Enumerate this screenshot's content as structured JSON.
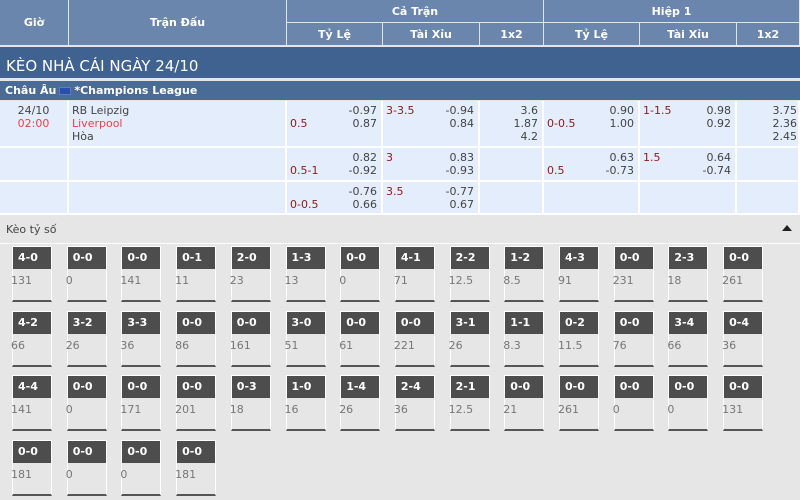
{
  "header": {
    "time": "Giờ",
    "match": "Trận Đấu",
    "full": "Cả Trận",
    "half": "Hiệp 1",
    "handicap": "Tỷ Lệ",
    "overunder": "Tài Xỉu",
    "x12": "1x2"
  },
  "title": "KÈO NHÀ CÁI NGÀY 24/10",
  "league": {
    "region": "Châu Âu",
    "name": "*Champions League",
    "flag_icon": "eu-flag-icon"
  },
  "match": {
    "date": "24/10",
    "time": "02:00",
    "home": "RB Leipzig",
    "away": "Liverpool",
    "draw": "Hòa"
  },
  "rows": [
    {
      "hc_line": "0.5",
      "hc_odds": [
        "-0.97",
        "0.87"
      ],
      "ou_line": "3-3.5",
      "ou_odds": [
        "-0.94",
        "0.84"
      ],
      "x12": [
        "3.6",
        "1.87",
        "4.2"
      ],
      "h_hc_line": "0-0.5",
      "h_hc_odds": [
        "0.90",
        "1.00"
      ],
      "h_ou_line": "1-1.5",
      "h_ou_odds": [
        "0.98",
        "0.92"
      ],
      "h_x12": [
        "3.75",
        "2.36",
        "2.45"
      ]
    },
    {
      "hc_line": "0.5-1",
      "hc_odds": [
        "0.82",
        "-0.92"
      ],
      "ou_line": "3",
      "ou_odds": [
        "0.83",
        "-0.93"
      ],
      "x12": [],
      "h_hc_line": "0.5",
      "h_hc_odds": [
        "0.63",
        "-0.73"
      ],
      "h_ou_line": "1.5",
      "h_ou_odds": [
        "0.64",
        "-0.74"
      ],
      "h_x12": []
    },
    {
      "hc_line": "0-0.5",
      "hc_odds": [
        "-0.76",
        "0.66"
      ],
      "ou_line": "3.5",
      "ou_odds": [
        "-0.77",
        "0.67"
      ],
      "x12": [],
      "h_hc_line": "",
      "h_hc_odds": [],
      "h_ou_line": "",
      "h_ou_odds": [],
      "h_x12": []
    }
  ],
  "correct_score": {
    "label": "Kèo tỷ số",
    "cards": [
      [
        "4-0",
        "131"
      ],
      [
        "0-0",
        "0"
      ],
      [
        "0-0",
        "141"
      ],
      [
        "0-1",
        "11"
      ],
      [
        "2-0",
        "23"
      ],
      [
        "1-3",
        "13"
      ],
      [
        "0-0",
        "0"
      ],
      [
        "4-1",
        "71"
      ],
      [
        "2-2",
        "12.5"
      ],
      [
        "1-2",
        "8.5"
      ],
      [
        "4-3",
        "91"
      ],
      [
        "0-0",
        "231"
      ],
      [
        "2-3",
        "18"
      ],
      [
        "0-0",
        "261"
      ],
      [
        "4-2",
        "66"
      ],
      [
        "3-2",
        "26"
      ],
      [
        "3-3",
        "36"
      ],
      [
        "0-0",
        "86"
      ],
      [
        "0-0",
        "161"
      ],
      [
        "3-0",
        "51"
      ],
      [
        "0-0",
        "61"
      ],
      [
        "0-0",
        "221"
      ],
      [
        "3-1",
        "26"
      ],
      [
        "1-1",
        "8.3"
      ],
      [
        "0-2",
        "11.5"
      ],
      [
        "0-0",
        "76"
      ],
      [
        "3-4",
        "66"
      ],
      [
        "0-4",
        "36"
      ],
      [
        "4-4",
        "141"
      ],
      [
        "0-0",
        "0"
      ],
      [
        "0-0",
        "171"
      ],
      [
        "0-0",
        "201"
      ],
      [
        "0-3",
        "18"
      ],
      [
        "1-0",
        "16"
      ],
      [
        "1-4",
        "26"
      ],
      [
        "2-4",
        "36"
      ],
      [
        "2-1",
        "12.5"
      ],
      [
        "0-0",
        "21"
      ],
      [
        "0-0",
        "261"
      ],
      [
        "0-0",
        "0"
      ],
      [
        "0-0",
        "0"
      ],
      [
        "0-0",
        "131"
      ],
      [
        "0-0",
        "181"
      ],
      [
        "0-0",
        "0"
      ],
      [
        "0-0",
        "0"
      ],
      [
        "0-0",
        "181"
      ]
    ]
  }
}
